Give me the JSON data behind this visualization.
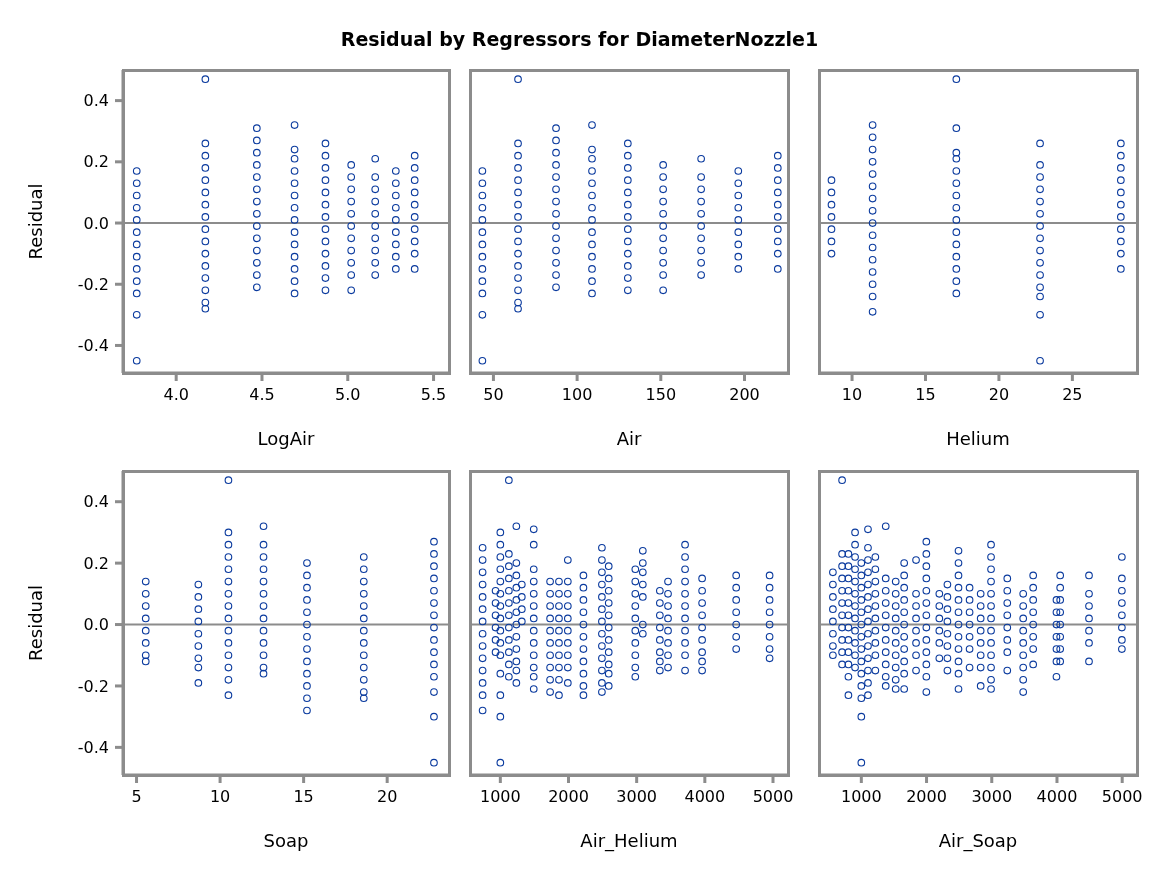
{
  "chart_data": [
    {
      "type": "scatter",
      "title": "Residual by Regressors for DiameterNozzle1",
      "xlabel": "LogAir",
      "ylabel": "Residual",
      "color": "#0a3a9e",
      "marker": "circle",
      "xlim": [
        3.69,
        5.59
      ],
      "xticks": [
        {
          "value": 4,
          "label": "4.0"
        },
        4.5,
        {
          "value": 5,
          "label": "5.0"
        },
        5.5
      ],
      "ylim": [
        -0.49,
        0.5
      ],
      "yticks": [
        -0.4,
        -0.2,
        {
          "value": 0,
          "label": "0.0"
        },
        0.2,
        0.4
      ],
      "ref_lines": [
        {
          "axis": "y",
          "value": 0,
          "color": "#8c8c8c"
        }
      ],
      "series": [
        {
          "x": [
            3.77,
            3.77,
            3.77,
            3.77,
            3.77,
            3.77,
            3.77,
            3.77,
            3.77,
            3.77,
            3.77,
            3.77,
            3.77
          ],
          "values": [
            0.17,
            0.13,
            0.09,
            0.05,
            0.01,
            -0.03,
            -0.07,
            -0.11,
            -0.15,
            -0.19,
            -0.23,
            -0.3,
            -0.45
          ]
        },
        {
          "x": [
            4.17,
            4.17,
            4.17,
            4.17,
            4.17,
            4.17,
            4.17,
            4.17,
            4.17,
            4.17,
            4.17,
            4.17,
            4.17,
            4.17,
            4.17,
            4.17
          ],
          "values": [
            0.47,
            0.26,
            0.22,
            0.18,
            0.14,
            0.1,
            0.06,
            0.02,
            -0.02,
            -0.06,
            -0.1,
            -0.14,
            -0.18,
            -0.22,
            -0.26,
            -0.28
          ]
        },
        {
          "x": [
            4.47,
            4.47,
            4.47,
            4.47,
            4.47,
            4.47,
            4.47,
            4.47,
            4.47,
            4.47,
            4.47,
            4.47,
            4.47,
            4.47
          ],
          "values": [
            0.31,
            0.27,
            0.23,
            0.19,
            0.15,
            0.11,
            0.07,
            0.03,
            -0.01,
            -0.05,
            -0.09,
            -0.13,
            -0.17,
            -0.21
          ]
        },
        {
          "x": [
            4.69,
            4.69,
            4.69,
            4.69,
            4.69,
            4.69,
            4.69,
            4.69,
            4.69,
            4.69,
            4.69,
            4.69,
            4.69,
            4.69
          ],
          "values": [
            0.32,
            0.24,
            0.21,
            0.17,
            0.13,
            0.09,
            0.05,
            0.01,
            -0.03,
            -0.07,
            -0.11,
            -0.15,
            -0.19,
            -0.23
          ]
        },
        {
          "x": [
            4.87,
            4.87,
            4.87,
            4.87,
            4.87,
            4.87,
            4.87,
            4.87,
            4.87,
            4.87,
            4.87,
            4.87,
            4.87
          ],
          "values": [
            0.26,
            0.22,
            0.18,
            0.14,
            0.1,
            0.06,
            0.02,
            -0.02,
            -0.06,
            -0.1,
            -0.14,
            -0.18,
            -0.22
          ]
        },
        {
          "x": [
            5.02,
            5.02,
            5.02,
            5.02,
            5.02,
            5.02,
            5.02,
            5.02,
            5.02,
            5.02,
            5.02
          ],
          "values": [
            0.19,
            0.15,
            0.11,
            0.07,
            0.03,
            -0.01,
            -0.05,
            -0.09,
            -0.13,
            -0.17,
            -0.22
          ]
        },
        {
          "x": [
            5.16,
            5.16,
            5.16,
            5.16,
            5.16,
            5.16,
            5.16,
            5.16,
            5.16,
            5.16
          ],
          "values": [
            0.21,
            0.15,
            0.11,
            0.07,
            0.03,
            -0.01,
            -0.05,
            -0.09,
            -0.13,
            -0.17
          ]
        },
        {
          "x": [
            5.28,
            5.28,
            5.28,
            5.28,
            5.28,
            5.28,
            5.28,
            5.28,
            5.28
          ],
          "values": [
            0.17,
            0.13,
            0.09,
            0.05,
            0.01,
            -0.03,
            -0.07,
            -0.11,
            -0.15
          ]
        },
        {
          "x": [
            5.39,
            5.39,
            5.39,
            5.39,
            5.39,
            5.39,
            5.39,
            5.39,
            5.39,
            5.39
          ],
          "values": [
            0.22,
            0.18,
            0.14,
            0.1,
            0.06,
            0.02,
            -0.02,
            -0.06,
            -0.1,
            -0.15
          ]
        }
      ]
    },
    {
      "type": "scatter",
      "xlabel": "Air",
      "color": "#0a3a9e",
      "marker": "circle",
      "tick_labels": "x",
      "xlim": [
        36,
        226
      ],
      "xticks": [
        50,
        100,
        150,
        200
      ],
      "ylim": [
        -0.49,
        0.5
      ],
      "ref_lines": [
        {
          "axis": "y",
          "value": 0,
          "color": "#8c8c8c"
        }
      ],
      "series": [
        {
          "x": [
            43.4,
            43.4,
            43.4,
            43.4,
            43.4,
            43.4,
            43.4,
            43.4,
            43.4,
            43.4,
            43.4,
            43.4,
            43.4
          ],
          "values": [
            0.17,
            0.13,
            0.09,
            0.05,
            0.01,
            -0.03,
            -0.07,
            -0.11,
            -0.15,
            -0.19,
            -0.23,
            -0.3,
            -0.45
          ]
        },
        {
          "x": [
            64.7,
            64.7,
            64.7,
            64.7,
            64.7,
            64.7,
            64.7,
            64.7,
            64.7,
            64.7,
            64.7,
            64.7,
            64.7,
            64.7,
            64.7,
            64.7
          ],
          "values": [
            0.47,
            0.26,
            0.22,
            0.18,
            0.14,
            0.1,
            0.06,
            0.02,
            -0.02,
            -0.06,
            -0.1,
            -0.14,
            -0.18,
            -0.22,
            -0.26,
            -0.28
          ]
        },
        {
          "x": [
            87.4,
            87.4,
            87.4,
            87.4,
            87.4,
            87.4,
            87.4,
            87.4,
            87.4,
            87.4,
            87.4,
            87.4,
            87.4,
            87.4
          ],
          "values": [
            0.31,
            0.27,
            0.23,
            0.19,
            0.15,
            0.11,
            0.07,
            0.03,
            -0.01,
            -0.05,
            -0.09,
            -0.13,
            -0.17,
            -0.21
          ]
        },
        {
          "x": [
            108.9,
            108.9,
            108.9,
            108.9,
            108.9,
            108.9,
            108.9,
            108.9,
            108.9,
            108.9,
            108.9,
            108.9,
            108.9,
            108.9
          ],
          "values": [
            0.32,
            0.24,
            0.21,
            0.17,
            0.13,
            0.09,
            0.05,
            0.01,
            -0.03,
            -0.07,
            -0.11,
            -0.15,
            -0.19,
            -0.23
          ]
        },
        {
          "x": [
            130.3,
            130.3,
            130.3,
            130.3,
            130.3,
            130.3,
            130.3,
            130.3,
            130.3,
            130.3,
            130.3,
            130.3,
            130.3
          ],
          "values": [
            0.26,
            0.22,
            0.18,
            0.14,
            0.1,
            0.06,
            0.02,
            -0.02,
            -0.06,
            -0.1,
            -0.14,
            -0.18,
            -0.22
          ]
        },
        {
          "x": [
            151.4,
            151.4,
            151.4,
            151.4,
            151.4,
            151.4,
            151.4,
            151.4,
            151.4,
            151.4,
            151.4
          ],
          "values": [
            0.19,
            0.15,
            0.11,
            0.07,
            0.03,
            -0.01,
            -0.05,
            -0.09,
            -0.13,
            -0.17,
            -0.22
          ]
        },
        {
          "x": [
            174.1,
            174.1,
            174.1,
            174.1,
            174.1,
            174.1,
            174.1,
            174.1,
            174.1,
            174.1
          ],
          "values": [
            0.21,
            0.15,
            0.11,
            0.07,
            0.03,
            -0.01,
            -0.05,
            -0.09,
            -0.13,
            -0.17
          ]
        },
        {
          "x": [
            196.3,
            196.3,
            196.3,
            196.3,
            196.3,
            196.3,
            196.3,
            196.3,
            196.3
          ],
          "values": [
            0.17,
            0.13,
            0.09,
            0.05,
            0.01,
            -0.03,
            -0.07,
            -0.11,
            -0.15
          ]
        },
        {
          "x": [
            219.9,
            219.9,
            219.9,
            219.9,
            219.9,
            219.9,
            219.9,
            219.9,
            219.9,
            219.9
          ],
          "values": [
            0.22,
            0.18,
            0.14,
            0.1,
            0.06,
            0.02,
            -0.02,
            -0.06,
            -0.1,
            -0.15
          ]
        }
      ]
    },
    {
      "type": "scatter",
      "xlabel": "Helium",
      "color": "#0a3a9e",
      "marker": "circle",
      "tick_labels": "x",
      "xlim": [
        7.75,
        29.4
      ],
      "xticks": [
        10,
        15,
        20,
        25
      ],
      "ylim": [
        -0.49,
        0.5
      ],
      "ref_lines": [
        {
          "axis": "y",
          "value": 0,
          "color": "#8c8c8c"
        }
      ],
      "series": [
        {
          "x": [
            8.6,
            8.6,
            8.6,
            8.6,
            8.6,
            8.6,
            8.6
          ],
          "values": [
            0.14,
            0.1,
            0.06,
            0.02,
            -0.02,
            -0.06,
            -0.1
          ]
        },
        {
          "x": [
            11.4,
            11.4,
            11.4,
            11.4,
            11.4,
            11.4,
            11.4,
            11.4,
            11.4,
            11.4,
            11.4,
            11.4,
            11.4,
            11.4,
            11.4,
            11.4
          ],
          "values": [
            0.32,
            0.28,
            0.24,
            0.2,
            0.16,
            0.12,
            0.08,
            0.04,
            0.0,
            -0.04,
            -0.08,
            -0.12,
            -0.16,
            -0.2,
            -0.24,
            -0.29
          ]
        },
        {
          "x": [
            17.1,
            17.1,
            17.1,
            17.1,
            17.1,
            17.1,
            17.1,
            17.1,
            17.1,
            17.1,
            17.1,
            17.1,
            17.1,
            17.1,
            17.1
          ],
          "values": [
            0.47,
            0.31,
            0.23,
            0.21,
            0.17,
            0.13,
            0.09,
            0.05,
            0.01,
            -0.03,
            -0.07,
            -0.11,
            -0.15,
            -0.19,
            -0.23
          ]
        },
        {
          "x": [
            22.8,
            22.8,
            22.8,
            22.8,
            22.8,
            22.8,
            22.8,
            22.8,
            22.8,
            22.8,
            22.8,
            22.8,
            22.8,
            22.8,
            22.8
          ],
          "values": [
            0.26,
            0.19,
            0.15,
            0.11,
            0.07,
            0.03,
            -0.01,
            -0.05,
            -0.09,
            -0.13,
            -0.17,
            -0.21,
            -0.24,
            -0.3,
            -0.45
          ]
        },
        {
          "x": [
            28.3,
            28.3,
            28.3,
            28.3,
            28.3,
            28.3,
            28.3,
            28.3,
            28.3,
            28.3,
            28.3
          ],
          "values": [
            0.26,
            0.22,
            0.18,
            0.14,
            0.1,
            0.06,
            0.02,
            -0.02,
            -0.06,
            -0.1,
            -0.15
          ]
        }
      ]
    },
    {
      "type": "scatter",
      "xlabel": "Soap",
      "ylabel": "Residual",
      "color": "#0a3a9e",
      "marker": "circle",
      "xlim": [
        4.19,
        23.7
      ],
      "xticks": [
        5,
        10,
        15,
        20
      ],
      "ylim": [
        -0.49,
        0.5
      ],
      "yticks": [
        -0.4,
        -0.2,
        {
          "value": 0,
          "label": "0.0"
        },
        0.2,
        0.4
      ],
      "ref_lines": [
        {
          "axis": "y",
          "value": 0,
          "color": "#8c8c8c"
        }
      ],
      "series": [
        {
          "x": [
            5.55,
            5.55,
            5.55,
            5.55,
            5.55,
            5.55,
            5.55,
            5.55
          ],
          "values": [
            0.14,
            0.1,
            0.06,
            0.02,
            -0.02,
            -0.06,
            -0.1,
            -0.12
          ]
        },
        {
          "x": [
            8.7,
            8.7,
            8.7,
            8.7,
            8.7,
            8.7,
            8.7,
            8.7,
            8.7
          ],
          "values": [
            0.13,
            0.09,
            0.05,
            0.01,
            -0.03,
            -0.07,
            -0.11,
            -0.14,
            -0.19
          ]
        },
        {
          "x": [
            10.5,
            10.5,
            10.5,
            10.5,
            10.5,
            10.5,
            10.5,
            10.5,
            10.5,
            10.5,
            10.5,
            10.5,
            10.5,
            10.5,
            10.5
          ],
          "values": [
            0.47,
            0.3,
            0.26,
            0.22,
            0.18,
            0.14,
            0.1,
            0.06,
            0.02,
            -0.02,
            -0.06,
            -0.1,
            -0.14,
            -0.18,
            -0.23
          ]
        },
        {
          "x": [
            12.6,
            12.6,
            12.6,
            12.6,
            12.6,
            12.6,
            12.6,
            12.6,
            12.6,
            12.6,
            12.6,
            12.6,
            12.6
          ],
          "values": [
            0.32,
            0.26,
            0.22,
            0.18,
            0.14,
            0.1,
            0.06,
            0.02,
            -0.02,
            -0.06,
            -0.1,
            -0.14,
            -0.16
          ]
        },
        {
          "x": [
            15.2,
            15.2,
            15.2,
            15.2,
            15.2,
            15.2,
            15.2,
            15.2,
            15.2,
            15.2,
            15.2,
            15.2,
            15.2
          ],
          "values": [
            0.2,
            0.16,
            0.12,
            0.08,
            0.04,
            0.0,
            -0.04,
            -0.08,
            -0.12,
            -0.16,
            -0.2,
            -0.24,
            -0.28
          ]
        },
        {
          "x": [
            18.6,
            18.6,
            18.6,
            18.6,
            18.6,
            18.6,
            18.6,
            18.6,
            18.6,
            18.6,
            18.6,
            18.6,
            18.6
          ],
          "values": [
            0.22,
            0.18,
            0.14,
            0.1,
            0.06,
            0.02,
            -0.02,
            -0.06,
            -0.1,
            -0.14,
            -0.18,
            -0.22,
            -0.24
          ]
        },
        {
          "x": [
            22.8,
            22.8,
            22.8,
            22.8,
            22.8,
            22.8,
            22.8,
            22.8,
            22.8,
            22.8,
            22.8,
            22.8,
            22.8,
            22.8,
            22.8
          ],
          "values": [
            0.27,
            0.23,
            0.19,
            0.15,
            0.11,
            0.07,
            0.03,
            -0.01,
            -0.05,
            -0.09,
            -0.13,
            -0.17,
            -0.22,
            -0.3,
            -0.45
          ]
        }
      ]
    },
    {
      "type": "scatter",
      "xlabel": "Air_Helium",
      "color": "#0a3a9e",
      "marker": "circle",
      "tick_labels": "x",
      "xlim": [
        555,
        5220
      ],
      "xticks": [
        1000,
        2000,
        3000,
        4000,
        5000
      ],
      "ylim": [
        -0.49,
        0.5
      ],
      "ref_lines": [
        {
          "axis": "y",
          "value": 0,
          "color": "#8c8c8c"
        }
      ],
      "series": [
        {
          "x": [
            740,
            740,
            740,
            740,
            740,
            740,
            740,
            740,
            740,
            740,
            740,
            740,
            740,
            740
          ],
          "values": [
            0.25,
            0.21,
            0.17,
            0.13,
            0.09,
            0.05,
            0.01,
            -0.03,
            -0.07,
            -0.11,
            -0.15,
            -0.19,
            -0.23,
            -0.28
          ]
        },
        {
          "x": [
            930,
            930,
            930,
            930,
            930,
            930
          ],
          "values": [
            0.11,
            0.07,
            0.03,
            -0.01,
            -0.05,
            -0.09
          ]
        },
        {
          "x": [
            1000,
            1000,
            1000,
            1000,
            1000,
            1000,
            1000,
            1000,
            1000,
            1000,
            1000,
            1000,
            1000,
            1000,
            1000
          ],
          "values": [
            0.3,
            0.26,
            0.22,
            0.18,
            0.14,
            0.1,
            0.06,
            0.02,
            -0.02,
            -0.06,
            -0.1,
            -0.16,
            -0.23,
            -0.3,
            -0.45
          ]
        },
        {
          "x": [
            1125,
            1125,
            1125,
            1125,
            1125,
            1125,
            1125,
            1125,
            1125,
            1125,
            1125,
            1125
          ],
          "values": [
            0.47,
            0.23,
            0.19,
            0.15,
            0.11,
            0.07,
            0.03,
            -0.01,
            -0.05,
            -0.09,
            -0.13,
            -0.17
          ]
        },
        {
          "x": [
            1235,
            1235,
            1235,
            1235,
            1235,
            1235,
            1235,
            1235,
            1235,
            1235,
            1235,
            1235
          ],
          "values": [
            0.32,
            0.2,
            0.16,
            0.12,
            0.08,
            0.04,
            0.0,
            -0.04,
            -0.08,
            -0.12,
            -0.15,
            -0.19
          ]
        },
        {
          "x": [
            1315,
            1315,
            1315,
            1315
          ],
          "values": [
            0.13,
            0.09,
            0.05,
            0.01
          ]
        },
        {
          "x": [
            1490,
            1490,
            1490,
            1490,
            1490,
            1490,
            1490,
            1490,
            1490,
            1490,
            1490,
            1490,
            1490
          ],
          "values": [
            0.31,
            0.26,
            0.18,
            0.14,
            0.1,
            0.06,
            0.02,
            -0.02,
            -0.06,
            -0.1,
            -0.14,
            -0.17,
            -0.21
          ]
        },
        {
          "x": [
            1730,
            1730,
            1730,
            1730,
            1730,
            1730,
            1730,
            1730,
            1730,
            1730
          ],
          "values": [
            0.14,
            0.1,
            0.06,
            0.02,
            -0.02,
            -0.06,
            -0.1,
            -0.14,
            -0.18,
            -0.22
          ]
        },
        {
          "x": [
            1860,
            1860,
            1860,
            1860,
            1860,
            1860,
            1860,
            1860,
            1860,
            1860
          ],
          "values": [
            0.14,
            0.1,
            0.06,
            0.02,
            -0.02,
            -0.06,
            -0.1,
            -0.14,
            -0.18,
            -0.23
          ]
        },
        {
          "x": [
            1990,
            1990,
            1990,
            1990,
            1990,
            1990,
            1990,
            1990,
            1990,
            1990
          ],
          "values": [
            0.21,
            0.14,
            0.1,
            0.06,
            0.02,
            -0.02,
            -0.06,
            -0.1,
            -0.14,
            -0.19
          ]
        },
        {
          "x": [
            2219,
            2219,
            2219,
            2219,
            2219,
            2219,
            2219,
            2219,
            2219,
            2219,
            2219
          ],
          "values": [
            0.16,
            0.12,
            0.08,
            0.04,
            0.0,
            -0.04,
            -0.08,
            -0.12,
            -0.16,
            -0.2,
            -0.23
          ]
        },
        {
          "x": [
            2490,
            2490,
            2490,
            2490,
            2490,
            2490,
            2490,
            2490,
            2490,
            2490,
            2490,
            2490,
            2490
          ],
          "values": [
            0.25,
            0.21,
            0.17,
            0.13,
            0.09,
            0.05,
            0.01,
            -0.03,
            -0.07,
            -0.11,
            -0.15,
            -0.19,
            -0.22
          ]
        },
        {
          "x": [
            2590,
            2590,
            2590,
            2590,
            2590,
            2590,
            2590,
            2590,
            2590,
            2590,
            2590
          ],
          "values": [
            0.19,
            0.15,
            0.11,
            0.07,
            0.03,
            -0.01,
            -0.05,
            -0.09,
            -0.13,
            -0.16,
            -0.2
          ]
        },
        {
          "x": [
            2980,
            2980,
            2980,
            2980,
            2980,
            2980,
            2980,
            2980,
            2980,
            2980
          ],
          "values": [
            0.18,
            0.14,
            0.1,
            0.06,
            0.02,
            -0.02,
            -0.06,
            -0.1,
            -0.14,
            -0.17
          ]
        },
        {
          "x": [
            3090,
            3090,
            3090,
            3090,
            3090,
            3090,
            3090
          ],
          "values": [
            0.24,
            0.2,
            0.17,
            0.13,
            0.09,
            0.0,
            -0.03
          ]
        },
        {
          "x": [
            3340,
            3340,
            3340,
            3340,
            3340,
            3340,
            3340,
            3340
          ],
          "values": [
            0.11,
            0.07,
            0.03,
            -0.01,
            -0.05,
            -0.09,
            -0.12,
            -0.15
          ]
        },
        {
          "x": [
            3460,
            3460,
            3460,
            3460,
            3460,
            3460,
            3460,
            3460
          ],
          "values": [
            0.14,
            0.1,
            0.06,
            0.02,
            -0.02,
            -0.06,
            -0.1,
            -0.14
          ]
        },
        {
          "x": [
            3710,
            3710,
            3710,
            3710,
            3710,
            3710,
            3710,
            3710,
            3710,
            3710,
            3710
          ],
          "values": [
            0.26,
            0.22,
            0.18,
            0.14,
            0.1,
            0.06,
            0.02,
            -0.02,
            -0.06,
            -0.1,
            -0.15
          ]
        },
        {
          "x": [
            3960,
            3960,
            3960,
            3960,
            3960,
            3960,
            3960,
            3960,
            3960
          ],
          "values": [
            0.15,
            0.11,
            0.07,
            0.03,
            -0.01,
            -0.05,
            -0.09,
            -0.12,
            -0.15
          ]
        },
        {
          "x": [
            4460,
            4460,
            4460,
            4460,
            4460,
            4460,
            4460
          ],
          "values": [
            0.16,
            0.12,
            0.08,
            0.04,
            0.0,
            -0.04,
            -0.08
          ]
        },
        {
          "x": [
            4950,
            4950,
            4950,
            4950,
            4950,
            4950,
            4950,
            4950
          ],
          "values": [
            0.16,
            0.12,
            0.08,
            0.04,
            0.0,
            -0.04,
            -0.08,
            -0.11
          ]
        }
      ]
    },
    {
      "type": "scatter",
      "xlabel": "Air_Soap",
      "color": "#0a3a9e",
      "marker": "circle",
      "tick_labels": "x",
      "xlim": [
        351,
        5227
      ],
      "xticks": [
        1000,
        2000,
        3000,
        4000,
        5000
      ],
      "ylim": [
        -0.49,
        0.5
      ],
      "ref_lines": [
        {
          "axis": "y",
          "value": 0,
          "color": "#8c8c8c"
        }
      ],
      "series": [
        {
          "x": [
            564,
            564,
            564,
            564,
            564,
            564,
            564,
            564
          ],
          "values": [
            0.17,
            0.13,
            0.09,
            0.05,
            0.01,
            -0.03,
            -0.07,
            -0.1
          ]
        },
        {
          "x": [
            705,
            705,
            705,
            705,
            705,
            705,
            705,
            705,
            705,
            705,
            705
          ],
          "values": [
            0.47,
            0.23,
            0.19,
            0.15,
            0.11,
            0.07,
            0.03,
            -0.01,
            -0.05,
            -0.09,
            -0.13
          ]
        },
        {
          "x": [
            802,
            802,
            802,
            802,
            802,
            802,
            802,
            802,
            802,
            802,
            802,
            802
          ],
          "values": [
            0.23,
            0.19,
            0.15,
            0.11,
            0.07,
            0.03,
            -0.01,
            -0.05,
            -0.09,
            -0.13,
            -0.17,
            -0.23
          ]
        },
        {
          "x": [
            904,
            904,
            904,
            904,
            904,
            904,
            904,
            904,
            904,
            904,
            904,
            904
          ],
          "values": [
            0.3,
            0.26,
            0.22,
            0.18,
            0.14,
            0.1,
            0.06,
            0.02,
            -0.02,
            -0.06,
            -0.1,
            -0.14
          ]
        },
        {
          "x": [
            1000,
            1000,
            1000,
            1000,
            1000,
            1000,
            1000,
            1000,
            1000,
            1000,
            1000,
            1000,
            1000,
            1000
          ],
          "values": [
            0.2,
            0.16,
            0.12,
            0.08,
            0.04,
            0.0,
            -0.04,
            -0.08,
            -0.12,
            -0.16,
            -0.2,
            -0.24,
            -0.3,
            -0.45
          ]
        },
        {
          "x": [
            1102,
            1102,
            1102,
            1102,
            1102,
            1102,
            1102,
            1102,
            1102,
            1102,
            1102,
            1102,
            1102,
            1102
          ],
          "values": [
            0.31,
            0.25,
            0.21,
            0.17,
            0.13,
            0.09,
            0.05,
            0.01,
            -0.03,
            -0.07,
            -0.11,
            -0.15,
            -0.19,
            -0.23
          ]
        },
        {
          "x": [
            1215,
            1215,
            1215,
            1215,
            1215,
            1215,
            1215,
            1215,
            1215,
            1215
          ],
          "values": [
            0.22,
            0.18,
            0.14,
            0.1,
            0.06,
            0.02,
            -0.02,
            -0.06,
            -0.1,
            -0.15
          ]
        },
        {
          "x": [
            1374,
            1374,
            1374,
            1374,
            1374,
            1374,
            1374,
            1374,
            1374,
            1374,
            1374
          ],
          "values": [
            0.32,
            0.15,
            0.11,
            0.07,
            0.03,
            -0.01,
            -0.05,
            -0.09,
            -0.13,
            -0.17,
            -0.2
          ]
        },
        {
          "x": [
            1527,
            1527,
            1527,
            1527,
            1527,
            1527,
            1527,
            1527,
            1527,
            1527
          ],
          "values": [
            0.14,
            0.1,
            0.06,
            0.02,
            -0.02,
            -0.06,
            -0.1,
            -0.14,
            -0.18,
            -0.21
          ]
        },
        {
          "x": [
            1657,
            1657,
            1657,
            1657,
            1657,
            1657,
            1657,
            1657,
            1657,
            1657,
            1657
          ],
          "values": [
            0.2,
            0.16,
            0.12,
            0.08,
            0.04,
            0.0,
            -0.04,
            -0.08,
            -0.12,
            -0.16,
            -0.21
          ]
        },
        {
          "x": [
            1839,
            1839,
            1839,
            1839,
            1839,
            1839,
            1839,
            1839
          ],
          "values": [
            0.21,
            0.1,
            0.06,
            0.02,
            -0.02,
            -0.06,
            -0.1,
            -0.15
          ]
        },
        {
          "x": [
            1997,
            1997,
            1997,
            1997,
            1997,
            1997,
            1997,
            1997,
            1997,
            1997,
            1997,
            1997,
            1997
          ],
          "values": [
            0.27,
            0.23,
            0.19,
            0.15,
            0.11,
            0.07,
            0.03,
            -0.01,
            -0.05,
            -0.09,
            -0.13,
            -0.17,
            -0.22
          ]
        },
        {
          "x": [
            2196,
            2196,
            2196,
            2196,
            2196,
            2196
          ],
          "values": [
            0.1,
            0.06,
            0.02,
            -0.02,
            -0.06,
            -0.11
          ]
        },
        {
          "x": [
            2320,
            2320,
            2320,
            2320,
            2320,
            2320,
            2320,
            2320
          ],
          "values": [
            0.13,
            0.09,
            0.05,
            0.01,
            -0.03,
            -0.07,
            -0.11,
            -0.15
          ]
        },
        {
          "x": [
            2490,
            2490,
            2490,
            2490,
            2490,
            2490,
            2490,
            2490,
            2490,
            2490,
            2490,
            2490
          ],
          "values": [
            0.24,
            0.2,
            0.16,
            0.12,
            0.08,
            0.04,
            0.0,
            -0.04,
            -0.08,
            -0.12,
            -0.16,
            -0.21
          ]
        },
        {
          "x": [
            2660,
            2660,
            2660,
            2660,
            2660,
            2660,
            2660
          ],
          "values": [
            0.12,
            0.08,
            0.04,
            0.0,
            -0.04,
            -0.08,
            -0.14
          ]
        },
        {
          "x": [
            2830,
            2830,
            2830,
            2830,
            2830,
            2830,
            2830,
            2830
          ],
          "values": [
            0.1,
            0.06,
            0.02,
            -0.02,
            -0.06,
            -0.1,
            -0.14,
            -0.2
          ]
        },
        {
          "x": [
            2989,
            2989,
            2989,
            2989,
            2989,
            2989,
            2989,
            2989,
            2989,
            2989,
            2989,
            2989,
            2989
          ],
          "values": [
            0.26,
            0.22,
            0.18,
            0.14,
            0.1,
            0.06,
            0.02,
            -0.02,
            -0.06,
            -0.1,
            -0.14,
            -0.18,
            -0.21
          ]
        },
        {
          "x": [
            3238,
            3238,
            3238,
            3238,
            3238,
            3238,
            3238,
            3238
          ],
          "values": [
            0.15,
            0.11,
            0.07,
            0.03,
            -0.01,
            -0.05,
            -0.09,
            -0.15
          ]
        },
        {
          "x": [
            3482,
            3482,
            3482,
            3482,
            3482,
            3482,
            3482,
            3482,
            3482
          ],
          "values": [
            0.1,
            0.06,
            0.02,
            -0.02,
            -0.06,
            -0.1,
            -0.14,
            -0.18,
            -0.22
          ]
        },
        {
          "x": [
            3635,
            3635,
            3635,
            3635,
            3635,
            3635,
            3635,
            3635
          ],
          "values": [
            0.16,
            0.12,
            0.08,
            0.04,
            0.0,
            -0.04,
            -0.08,
            -0.13
          ]
        },
        {
          "x": [
            3992,
            3992,
            3992,
            3992,
            3992,
            3992,
            3992
          ],
          "values": [
            0.08,
            0.04,
            0.0,
            -0.04,
            -0.08,
            -0.12,
            -0.17
          ]
        },
        {
          "x": [
            4049,
            4049,
            4049,
            4049,
            4049,
            4049,
            4049,
            4049
          ],
          "values": [
            0.16,
            0.12,
            0.08,
            0.04,
            0.0,
            -0.04,
            -0.08,
            -0.12
          ]
        },
        {
          "x": [
            4491,
            4491,
            4491,
            4491,
            4491,
            4491,
            4491
          ],
          "values": [
            0.16,
            0.1,
            0.06,
            0.02,
            -0.02,
            -0.06,
            -0.12
          ]
        },
        {
          "x": [
            4995,
            4995,
            4995,
            4995,
            4995,
            4995,
            4995,
            4995
          ],
          "values": [
            0.22,
            0.15,
            0.11,
            0.07,
            0.03,
            -0.01,
            -0.05,
            -0.08
          ]
        }
      ]
    }
  ]
}
